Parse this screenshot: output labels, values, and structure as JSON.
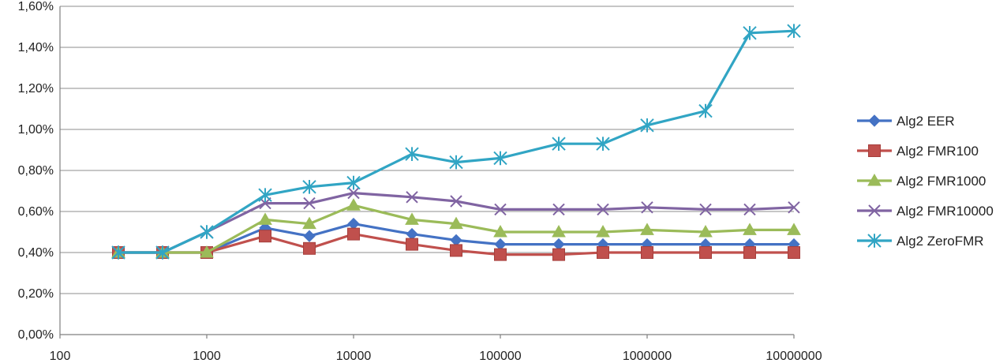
{
  "chart_data": {
    "type": "line",
    "title": "",
    "xlabel": "",
    "ylabel": "",
    "x_scale": "log",
    "x_tick_labels": [
      "100",
      "1000",
      "10000",
      "100000",
      "1000000",
      "10000000"
    ],
    "x_ticks": [
      100,
      1000,
      10000,
      100000,
      1000000,
      10000000
    ],
    "y_tick_labels": [
      "0,00%",
      "0,20%",
      "0,40%",
      "0,60%",
      "0,80%",
      "1,00%",
      "1,20%",
      "1,40%",
      "1,60%"
    ],
    "y_ticks": [
      0,
      0.2,
      0.4,
      0.6,
      0.8,
      1.0,
      1.2,
      1.4,
      1.6
    ],
    "xlim": [
      100,
      10000000
    ],
    "ylim": [
      0,
      1.6
    ],
    "grid": "horizontal",
    "legend_position": "right",
    "x": [
      250,
      500,
      1000,
      2500,
      5000,
      10000,
      25000,
      50000,
      100000,
      250000,
      500000,
      1000000,
      2500000,
      5000000,
      10000000
    ],
    "series": [
      {
        "name": "Alg2 EER",
        "color": "#4472c4",
        "marker": "diamond",
        "values": [
          0.4,
          0.4,
          0.4,
          0.52,
          0.48,
          0.54,
          0.49,
          0.46,
          0.44,
          0.44,
          0.44,
          0.44,
          0.44,
          0.44,
          0.44
        ]
      },
      {
        "name": "Alg2 FMR100",
        "color": "#c0504d",
        "marker": "square",
        "values": [
          0.4,
          0.4,
          0.4,
          0.48,
          0.42,
          0.49,
          0.44,
          0.41,
          0.39,
          0.39,
          0.4,
          0.4,
          0.4,
          0.4,
          0.4
        ]
      },
      {
        "name": "Alg2 FMR1000",
        "color": "#9bbb59",
        "marker": "triangle",
        "values": [
          0.4,
          0.4,
          0.4,
          0.56,
          0.54,
          0.63,
          0.56,
          0.54,
          0.5,
          0.5,
          0.5,
          0.51,
          0.5,
          0.51,
          0.51
        ]
      },
      {
        "name": "Alg2 FMR10000",
        "color": "#8064a2",
        "marker": "x",
        "values": [
          0.4,
          0.4,
          0.5,
          0.64,
          0.64,
          0.69,
          0.67,
          0.65,
          0.61,
          0.61,
          0.61,
          0.62,
          0.61,
          0.61,
          0.62
        ]
      },
      {
        "name": "Alg2 ZeroFMR",
        "color": "#31a5c4",
        "marker": "star",
        "values": [
          0.4,
          0.4,
          0.5,
          0.68,
          0.72,
          0.74,
          0.88,
          0.84,
          0.86,
          0.93,
          0.93,
          1.02,
          1.09,
          1.47,
          1.48
        ]
      }
    ]
  }
}
